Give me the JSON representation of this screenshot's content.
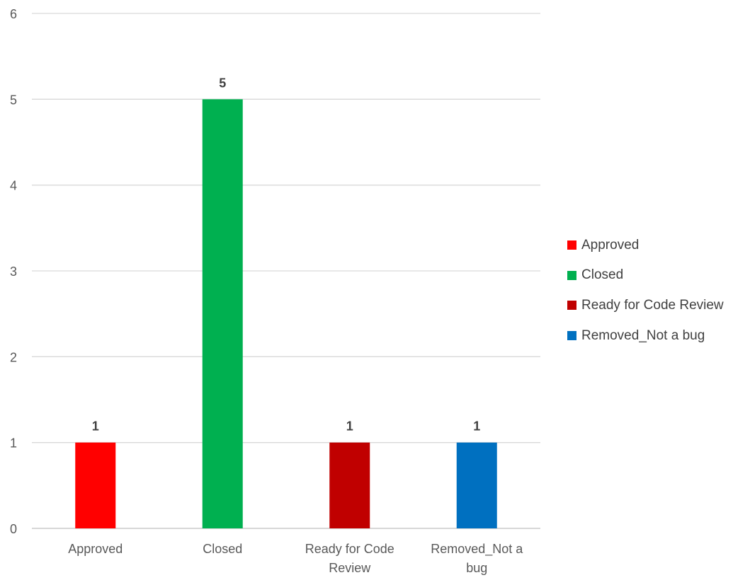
{
  "chart_data": {
    "type": "bar",
    "categories": [
      "Approved",
      "Closed",
      "Ready for Code Review",
      "Removed_Not a bug"
    ],
    "category_labels": [
      [
        "Approved"
      ],
      [
        "Closed"
      ],
      [
        "Ready for Code",
        "Review"
      ],
      [
        "Removed_Not a",
        "bug"
      ]
    ],
    "values": [
      1,
      5,
      1,
      1
    ],
    "data_labels": [
      "1",
      "5",
      "1",
      "1"
    ],
    "colors": [
      "#ff0000",
      "#00b050",
      "#c00000",
      "#0070c0"
    ],
    "title": "",
    "xlabel": "",
    "ylabel": "",
    "ylim": [
      0,
      6
    ],
    "y_ticks": [
      "0",
      "1",
      "2",
      "3",
      "4",
      "5",
      "6"
    ],
    "grid": true,
    "legend_position": "right",
    "legend": [
      {
        "label": "Approved",
        "color": "#ff0000"
      },
      {
        "label": "Closed",
        "color": "#00b050"
      },
      {
        "label": "Ready for Code Review",
        "color": "#c00000"
      },
      {
        "label": "Removed_Not a bug",
        "color": "#0070c0"
      }
    ]
  }
}
